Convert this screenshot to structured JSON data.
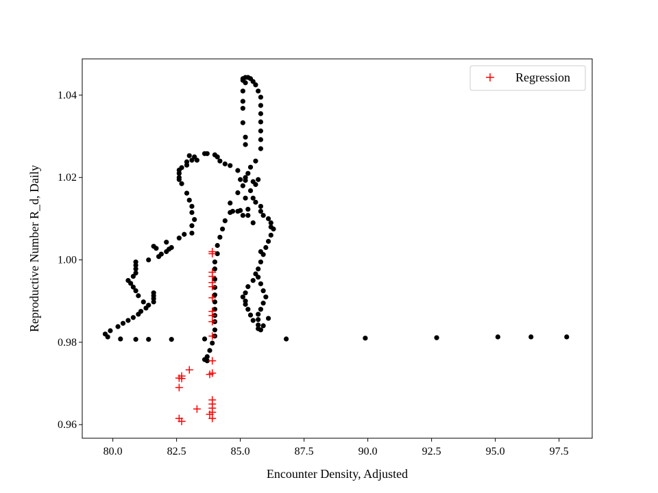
{
  "chart_data": {
    "type": "scatter",
    "xlabel": "Encounter Density, Adjusted",
    "ylabel": "Reproductive Number R_d, Daily",
    "xlim": [
      78.8,
      98.8
    ],
    "ylim": [
      0.9567,
      1.0488
    ],
    "x_ticks": [
      80.0,
      82.5,
      85.0,
      87.5,
      90.0,
      92.5,
      95.0,
      97.5
    ],
    "x_tick_labels": [
      "80.0",
      "82.5",
      "85.0",
      "87.5",
      "90.0",
      "92.5",
      "95.0",
      "97.5"
    ],
    "y_ticks": [
      0.96,
      0.98,
      1.0,
      1.02,
      1.04
    ],
    "y_tick_labels": [
      "0.96",
      "0.98",
      "1.00",
      "1.02",
      "1.04"
    ],
    "grid": false,
    "legend_position": "top-right",
    "colors": {
      "observed": "#000000",
      "regression": "#ff0000"
    },
    "series": [
      {
        "marker": "dot",
        "color": "#000000",
        "points": [
          [
            97.8,
            0.9813
          ],
          [
            96.4,
            0.9813
          ],
          [
            95.1,
            0.9813
          ],
          [
            92.7,
            0.9811
          ],
          [
            89.9,
            0.981
          ],
          [
            86.8,
            0.9808
          ],
          [
            82.3,
            0.9807
          ],
          [
            81.4,
            0.9807
          ],
          [
            80.9,
            0.9807
          ],
          [
            80.3,
            0.9808
          ],
          [
            79.8,
            0.9813
          ],
          [
            79.7,
            0.982
          ],
          [
            79.9,
            0.9828
          ],
          [
            80.2,
            0.9838
          ],
          [
            80.4,
            0.9846
          ],
          [
            80.6,
            0.9853
          ],
          [
            80.8,
            0.986
          ],
          [
            81.0,
            0.9868
          ],
          [
            81.1,
            0.9875
          ],
          [
            81.3,
            0.9883
          ],
          [
            81.4,
            0.989
          ],
          [
            81.6,
            0.9898
          ],
          [
            81.6,
            0.9906
          ],
          [
            81.6,
            0.9913
          ],
          [
            81.6,
            0.992
          ],
          [
            81.2,
            0.9898
          ],
          [
            81.0,
            0.9913
          ],
          [
            80.9,
            0.9925
          ],
          [
            80.8,
            0.9934
          ],
          [
            80.7,
            0.9943
          ],
          [
            80.6,
            0.995
          ],
          [
            80.8,
            0.996
          ],
          [
            80.9,
            0.9968
          ],
          [
            80.9,
            0.9978
          ],
          [
            80.9,
            0.9987
          ],
          [
            80.9,
            0.9995
          ],
          [
            81.4,
            1.0
          ],
          [
            81.8,
            1.0008
          ],
          [
            81.9,
            1.0014
          ],
          [
            82.1,
            1.002
          ],
          [
            82.2,
            1.0026
          ],
          [
            82.3,
            1.003
          ],
          [
            82.6,
            1.0053
          ],
          [
            82.8,
            1.0062
          ],
          [
            81.6,
            1.0033
          ],
          [
            81.7,
            1.0028
          ],
          [
            82.1,
            1.0043
          ],
          [
            82.7,
            1.0185
          ],
          [
            82.6,
            1.02
          ],
          [
            82.6,
            1.0218
          ],
          [
            82.7,
            1.0224
          ],
          [
            82.9,
            1.023
          ],
          [
            82.9,
            1.0238
          ],
          [
            83.1,
            1.0242
          ],
          [
            83.0,
            1.0253
          ],
          [
            83.2,
            1.025
          ],
          [
            83.3,
            1.0242
          ],
          [
            82.6,
            1.021
          ],
          [
            82.6,
            1.0195
          ],
          [
            82.9,
            1.0162
          ],
          [
            83.0,
            1.0145
          ],
          [
            83.1,
            1.013
          ],
          [
            83.1,
            1.0115
          ],
          [
            83.2,
            1.0098
          ],
          [
            83.1,
            1.0083
          ],
          [
            83.1,
            1.0065
          ],
          [
            83.6,
            1.0258
          ],
          [
            83.7,
            1.0258
          ],
          [
            84.0,
            1.0255
          ],
          [
            84.1,
            1.025
          ],
          [
            84.2,
            1.024
          ],
          [
            84.4,
            1.0233
          ],
          [
            84.6,
            1.0229
          ],
          [
            84.9,
            1.0217
          ],
          [
            85.2,
            1.02
          ],
          [
            85.5,
            1.019
          ],
          [
            85.7,
            1.0195
          ],
          [
            85.6,
            1.0183
          ],
          [
            85.4,
            1.0168
          ],
          [
            85.5,
            1.015
          ],
          [
            85.6,
            1.014
          ],
          [
            85.8,
            1.013
          ],
          [
            85.8,
            1.0118
          ],
          [
            85.9,
            1.0108
          ],
          [
            86.1,
            1.01
          ],
          [
            86.2,
            1.009
          ],
          [
            86.2,
            1.008
          ],
          [
            86.3,
            1.0075
          ],
          [
            86.2,
            1.006
          ],
          [
            86.1,
            1.0045
          ],
          [
            86.0,
            1.003
          ],
          [
            85.9,
            1.0013
          ],
          [
            85.8,
            0.9995
          ],
          [
            85.7,
            0.9978
          ],
          [
            85.7,
            0.9958
          ],
          [
            85.8,
            0.9942
          ],
          [
            85.9,
            0.9925
          ],
          [
            86.0,
            0.991
          ],
          [
            85.9,
            0.9895
          ],
          [
            85.8,
            0.988
          ],
          [
            85.7,
            0.9868
          ],
          [
            85.7,
            0.9855
          ],
          [
            85.7,
            0.9842
          ],
          [
            85.7,
            0.9833
          ],
          [
            85.5,
            0.9853
          ],
          [
            85.4,
            0.9866
          ],
          [
            85.3,
            0.988
          ],
          [
            85.2,
            0.9892
          ],
          [
            85.2,
            0.99
          ],
          [
            85.1,
            0.991
          ],
          [
            85.2,
            0.992
          ],
          [
            85.3,
            0.9935
          ],
          [
            85.5,
            0.995
          ],
          [
            85.6,
            0.9966
          ],
          [
            85.8,
            1.002
          ],
          [
            85.5,
            1.009
          ],
          [
            85.3,
            1.0108
          ],
          [
            85.0,
            1.012
          ],
          [
            84.9,
            1.0118
          ],
          [
            85.2,
            1.015
          ],
          [
            85.3,
            1.0123
          ],
          [
            85.1,
            1.0108
          ],
          [
            84.7,
            1.0118
          ],
          [
            85.0,
            1.0195
          ],
          [
            85.2,
            1.028
          ],
          [
            85.2,
            1.0298
          ],
          [
            85.1,
            1.0333
          ],
          [
            85.1,
            1.0368
          ],
          [
            85.1,
            1.0385
          ],
          [
            85.1,
            1.041
          ],
          [
            85.2,
            1.043
          ],
          [
            85.1,
            1.0436
          ],
          [
            85.1,
            1.044
          ],
          [
            85.2,
            1.0443
          ],
          [
            85.3,
            1.0443
          ],
          [
            85.4,
            1.044
          ],
          [
            85.5,
            1.0433
          ],
          [
            85.6,
            1.0425
          ],
          [
            85.7,
            1.041
          ],
          [
            85.8,
            1.0395
          ],
          [
            85.8,
            1.0375
          ],
          [
            85.8,
            1.0355
          ],
          [
            85.8,
            1.0335
          ],
          [
            85.8,
            1.0313
          ],
          [
            85.8,
            1.0292
          ],
          [
            85.8,
            1.027
          ],
          [
            85.6,
            1.024
          ],
          [
            85.4,
            1.0225
          ],
          [
            85.3,
            1.021
          ],
          [
            85.2,
            1.0193
          ],
          [
            85.1,
            1.018
          ],
          [
            84.9,
            1.0163
          ],
          [
            84.6,
            1.0138
          ],
          [
            84.6,
            1.0115
          ],
          [
            84.4,
            1.0095
          ],
          [
            84.3,
            1.0075
          ],
          [
            84.2,
            1.0055
          ],
          [
            84.1,
            1.0035
          ],
          [
            84.1,
            1.0015
          ],
          [
            84.0,
            0.9995
          ],
          [
            84.0,
            0.9978
          ],
          [
            84.0,
            0.9953
          ],
          [
            84.0,
            0.9933
          ],
          [
            84.0,
            0.9915
          ],
          [
            84.0,
            0.9898
          ],
          [
            84.0,
            0.988
          ],
          [
            84.0,
            0.9865
          ],
          [
            84.0,
            0.985
          ],
          [
            84.0,
            0.983
          ],
          [
            84.0,
            0.9815
          ],
          [
            83.9,
            0.9798
          ],
          [
            83.8,
            0.978
          ],
          [
            83.7,
            0.9765
          ],
          [
            83.7,
            0.9755
          ],
          [
            83.6,
            0.9758
          ],
          [
            83.6,
            0.9808
          ],
          [
            85.8,
            0.983
          ],
          [
            85.9,
            0.984
          ],
          [
            86.1,
            0.9858
          ]
        ]
      },
      {
        "name": "Regression",
        "marker": "plus",
        "color": "#ff0000",
        "points": [
          [
            83.9,
            1.002
          ],
          [
            83.9,
            1.0015
          ],
          [
            83.9,
            0.997
          ],
          [
            83.9,
            0.996
          ],
          [
            83.9,
            0.9945
          ],
          [
            83.9,
            0.9935
          ],
          [
            83.9,
            0.9908
          ],
          [
            83.9,
            0.9875
          ],
          [
            83.9,
            0.9865
          ],
          [
            83.9,
            0.985
          ],
          [
            83.9,
            0.9815
          ],
          [
            83.9,
            0.9755
          ],
          [
            83.9,
            0.9725
          ],
          [
            83.8,
            0.9722
          ],
          [
            83.9,
            0.966
          ],
          [
            83.9,
            0.965
          ],
          [
            83.9,
            0.964
          ],
          [
            83.9,
            0.963
          ],
          [
            83.8,
            0.9625
          ],
          [
            83.9,
            0.9615
          ],
          [
            83.3,
            0.9638
          ],
          [
            83.0,
            0.9733
          ],
          [
            82.7,
            0.9718
          ],
          [
            82.7,
            0.9712
          ],
          [
            82.6,
            0.9713
          ],
          [
            82.6,
            0.969
          ],
          [
            82.6,
            0.9615
          ],
          [
            82.7,
            0.9608
          ]
        ]
      }
    ]
  }
}
